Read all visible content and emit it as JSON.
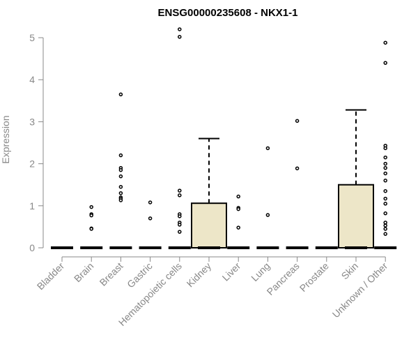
{
  "chart_data": {
    "type": "boxplot",
    "title": "ENSG00000235608 - NKX1-1",
    "xlabel": "",
    "ylabel": "Expression",
    "ylim": [
      0,
      5.2
    ],
    "yticks": [
      0,
      1,
      2,
      3,
      4,
      5
    ],
    "categories": [
      "Bladder",
      "Brain",
      "Breast",
      "Gastric",
      "Hematopoietic cells",
      "Kidney",
      "Liver",
      "Lung",
      "Pancreas",
      "Prostate",
      "Skin",
      "Unknown / Other"
    ],
    "boxes": [
      {
        "category": "Bladder",
        "q1": 0,
        "median": 0,
        "q3": 0,
        "whisker_low": 0,
        "whisker_high": 0,
        "outliers": []
      },
      {
        "category": "Brain",
        "q1": 0,
        "median": 0,
        "q3": 0,
        "whisker_low": 0,
        "whisker_high": 0,
        "outliers": [
          0.97,
          0.8,
          0.77,
          0.46,
          0.45
        ]
      },
      {
        "category": "Breast",
        "q1": 0,
        "median": 0,
        "q3": 0,
        "whisker_low": 0,
        "whisker_high": 0,
        "outliers": [
          3.65,
          2.2,
          1.9,
          1.85,
          1.7,
          1.45,
          1.3,
          1.2,
          1.17,
          1.13
        ]
      },
      {
        "category": "Gastric",
        "q1": 0,
        "median": 0,
        "q3": 0,
        "whisker_low": 0,
        "whisker_high": 0,
        "outliers": [
          1.08,
          0.7
        ]
      },
      {
        "category": "Hematopoietic cells",
        "q1": 0,
        "median": 0,
        "q3": 0,
        "whisker_low": 0,
        "whisker_high": 0,
        "outliers": [
          5.2,
          5.02,
          1.36,
          1.25,
          0.8,
          0.75,
          0.6,
          0.55,
          0.38
        ]
      },
      {
        "category": "Kidney",
        "q1": 0,
        "median": 0,
        "q3": 1.06,
        "whisker_low": 0,
        "whisker_high": 2.6,
        "outliers": []
      },
      {
        "category": "Liver",
        "q1": 0,
        "median": 0,
        "q3": 0,
        "whisker_low": 0,
        "whisker_high": 0,
        "outliers": [
          1.22,
          0.95,
          0.92,
          0.48
        ]
      },
      {
        "category": "Lung",
        "q1": 0,
        "median": 0,
        "q3": 0,
        "whisker_low": 0,
        "whisker_high": 0,
        "outliers": [
          2.37,
          0.78
        ]
      },
      {
        "category": "Pancreas",
        "q1": 0,
        "median": 0,
        "q3": 0,
        "whisker_low": 0,
        "whisker_high": 0,
        "outliers": [
          3.02,
          1.89
        ]
      },
      {
        "category": "Prostate",
        "q1": 0,
        "median": 0,
        "q3": 0,
        "whisker_low": 0,
        "whisker_high": 0,
        "outliers": []
      },
      {
        "category": "Skin",
        "q1": 0,
        "median": 0,
        "q3": 1.5,
        "whisker_low": 0,
        "whisker_high": 3.28,
        "outliers": []
      },
      {
        "category": "Unknown / Other",
        "q1": 0,
        "median": 0,
        "q3": 0,
        "whisker_low": 0,
        "whisker_high": 0,
        "outliers": [
          4.88,
          4.4,
          2.43,
          2.37,
          2.15,
          2.0,
          1.9,
          1.77,
          1.6,
          1.35,
          1.17,
          1.05,
          0.82,
          0.6,
          0.53,
          0.45,
          0.33
        ]
      }
    ],
    "colors": {
      "box_fill": "#ede6c8",
      "axis": "#888888"
    },
    "grid": false,
    "legend": "none"
  }
}
